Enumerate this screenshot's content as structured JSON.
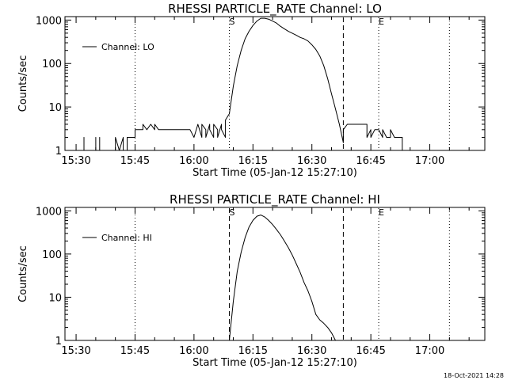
{
  "chart_data": [
    {
      "type": "line",
      "title": "RHESSI PARTICLE_RATE Channel: LO",
      "xlabel": "Start Time (05-Jan-12 15:27:10)",
      "ylabel": "Counts/sec",
      "yscale": "log",
      "ylim": [
        1,
        1200
      ],
      "x_unit": "minutes",
      "xlim": [
        "15:27:10",
        "17:14:00"
      ],
      "x_tick_labels": [
        "15:30",
        "15:45",
        "16:00",
        "16:15",
        "16:30",
        "16:45",
        "17:00"
      ],
      "y_tick_labels": [
        "1",
        "10",
        "100",
        "1000"
      ],
      "legend": {
        "entry": "Channel: LO",
        "placement": "top-left"
      },
      "markers": [
        {
          "label": "S",
          "time": "16:09",
          "style": "dashed"
        },
        {
          "label": "E",
          "time": "16:47",
          "style": "dotted"
        }
      ],
      "vlines": [
        {
          "time": "15:45",
          "style": "dotted"
        },
        {
          "time": "16:09",
          "style": "dotted"
        },
        {
          "time": "16:38",
          "style": "dashed"
        },
        {
          "time": "16:47",
          "style": "dotted"
        },
        {
          "time": "17:05",
          "style": "dotted"
        }
      ],
      "series": [
        {
          "name": "Channel: LO",
          "x": [
            "15:32",
            "15:32",
            "15:32",
            "15:35",
            "15:35",
            "15:35",
            "15:36",
            "15:36",
            "15:36",
            "15:40",
            "15:40",
            "15:41",
            "15:41",
            "15:42",
            "15:42",
            "15:43",
            "15:43",
            "15:43",
            "15:45",
            "15:45",
            "15:47",
            "15:47",
            "15:48",
            "15:49",
            "15:50",
            "15:50",
            "15:51",
            "15:52",
            "15:53",
            "15:53",
            "15:55",
            "15:56",
            "15:57",
            "15:58",
            "15:59",
            "16:00",
            "16:01",
            "16:02",
            "16:02",
            "16:03",
            "16:03",
            "16:04",
            "16:04",
            "16:05",
            "16:05",
            "16:06",
            "16:06",
            "16:07",
            "16:07",
            "16:08",
            "16:08",
            "16:09",
            "16:10",
            "16:11",
            "16:12",
            "16:13",
            "16:14",
            "16:15",
            "16:16",
            "16:17",
            "16:18",
            "16:19",
            "16:20",
            "16:21",
            "16:22",
            "16:23",
            "16:24",
            "16:25",
            "16:26",
            "16:27",
            "16:28",
            "16:29",
            "16:30",
            "16:31",
            "16:32",
            "16:33",
            "16:34",
            "16:35",
            "16:36",
            "16:37",
            "16:38",
            "16:38",
            "16:39",
            "16:44",
            "16:44",
            "16:45",
            "16:45",
            "16:46",
            "16:47",
            "16:48",
            "16:48",
            "16:49",
            "16:50",
            "16:50",
            "16:51",
            "16:51",
            "16:53",
            "16:53",
            "16:53"
          ],
          "y": [
            1,
            2,
            1,
            1,
            2,
            1,
            1,
            2,
            1,
            1,
            2,
            1,
            1,
            2,
            1,
            1,
            2,
            2,
            2,
            3,
            3,
            4,
            3,
            4,
            3,
            4,
            3,
            3,
            3,
            3,
            3,
            3,
            3,
            3,
            3,
            2,
            4,
            2,
            4,
            3,
            2,
            4,
            3,
            2,
            4,
            3,
            2,
            4,
            3,
            2,
            5,
            7,
            30,
            90,
            200,
            370,
            550,
            750,
            950,
            1100,
            1100,
            1050,
            950,
            850,
            720,
            630,
            550,
            500,
            450,
            400,
            370,
            330,
            270,
            210,
            150,
            90,
            45,
            20,
            9,
            4,
            1.5,
            3,
            4,
            4,
            2,
            3,
            2,
            3,
            3,
            2,
            3,
            2,
            2,
            3,
            2,
            2,
            2,
            1,
            1
          ]
        }
      ]
    },
    {
      "type": "line",
      "title": "RHESSI PARTICLE_RATE Channel: HI",
      "xlabel": "Start Time (05-Jan-12 15:27:10)",
      "ylabel": "Counts/sec",
      "yscale": "log",
      "ylim": [
        1,
        1200
      ],
      "x_unit": "minutes",
      "xlim": [
        "15:27:10",
        "17:14:00"
      ],
      "x_tick_labels": [
        "15:30",
        "15:45",
        "16:00",
        "16:15",
        "16:30",
        "16:45",
        "17:00"
      ],
      "y_tick_labels": [
        "1",
        "10",
        "100",
        "1000"
      ],
      "legend": {
        "entry": "Channel: HI",
        "placement": "top-left"
      },
      "markers": [
        {
          "label": "S",
          "time": "16:09",
          "style": "dashed"
        },
        {
          "label": "E",
          "time": "16:47",
          "style": "dotted"
        }
      ],
      "vlines": [
        {
          "time": "15:45",
          "style": "dotted"
        },
        {
          "time": "16:09",
          "style": "dashed"
        },
        {
          "time": "16:38",
          "style": "dashed"
        },
        {
          "time": "16:47",
          "style": "dotted"
        },
        {
          "time": "17:05",
          "style": "dotted"
        }
      ],
      "series": [
        {
          "name": "Channel: HI",
          "x": [
            "16:09",
            "16:10",
            "16:11",
            "16:12",
            "16:13",
            "16:14",
            "16:15",
            "16:16",
            "16:17",
            "16:18",
            "16:19",
            "16:20",
            "16:21",
            "16:22",
            "16:23",
            "16:24",
            "16:25",
            "16:26",
            "16:27",
            "16:28",
            "16:29",
            "16:30",
            "16:31",
            "16:32",
            "16:33",
            "16:34",
            "16:35",
            "16:36"
          ],
          "y": [
            1,
            8,
            40,
            110,
            240,
            420,
            600,
            750,
            800,
            720,
            600,
            480,
            370,
            280,
            200,
            140,
            95,
            60,
            38,
            22,
            14,
            8,
            4,
            3,
            2.5,
            2,
            1.5,
            1
          ]
        }
      ]
    }
  ],
  "timestamp": "18-Oct-2021 14:28"
}
